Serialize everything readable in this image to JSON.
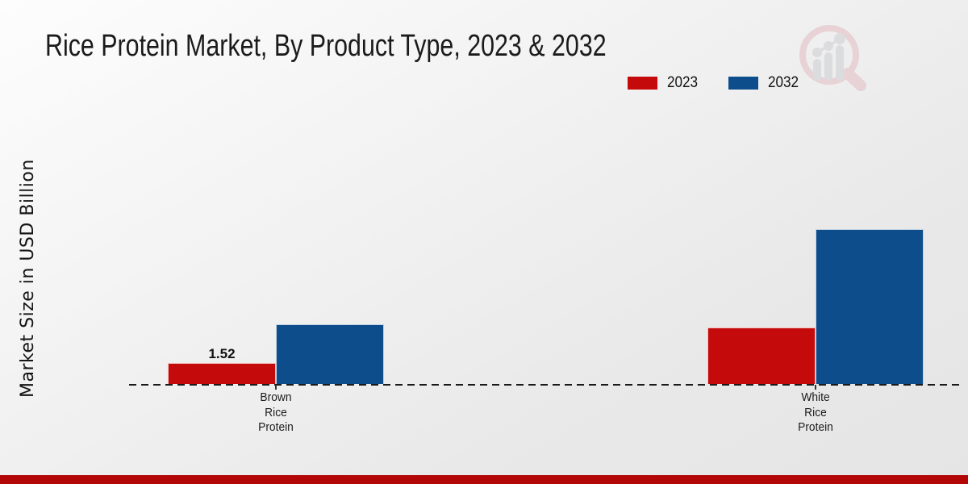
{
  "chart_data": {
    "type": "bar",
    "title": "Rice Protein Market, By Product Type, 2023 & 2032",
    "ylabel": "Market Size in USD Billion",
    "categories": [
      "Brown\nRice\nProtein",
      "White\nRice\nProtein"
    ],
    "series": [
      {
        "name": "2023",
        "color": "#c40a0a",
        "values": [
          1.52,
          4.1
        ],
        "labels": [
          "1.52",
          null
        ]
      },
      {
        "name": "2032",
        "color": "#0d4d8c",
        "values": [
          4.3,
          11.2
        ],
        "labels": [
          null,
          null
        ]
      }
    ],
    "ylim": [
      0,
      18
    ],
    "grid": false,
    "legend_position": "top-right",
    "baseline_style": "dashed"
  },
  "legend": [
    {
      "label": "2023",
      "color": "#c40a0a"
    },
    {
      "label": "2032",
      "color": "#0d4d8c"
    }
  ],
  "branding": {
    "logo_icon": "magnifier-bar-chart-logo-icon",
    "accent_bar_color": "#b30606"
  }
}
